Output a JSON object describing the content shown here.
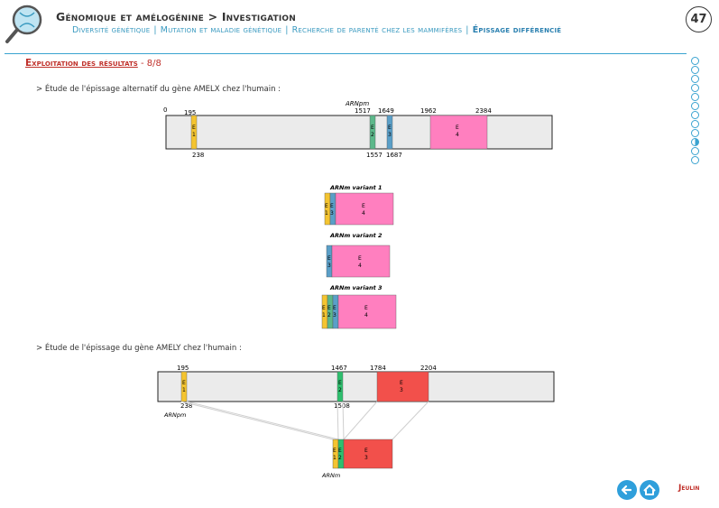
{
  "header": {
    "title_main": "Génomique et amélogénine",
    "title_sep": " > ",
    "title_sub": "Investigation",
    "subnav": [
      {
        "label": "Diversité génétique",
        "active": false
      },
      {
        "label": "Mutation et maladie génétique",
        "active": false
      },
      {
        "label": "Recherche de parenté chez les mammifères",
        "active": false
      },
      {
        "label": "Épissage différencié",
        "active": true
      }
    ],
    "page_number": "47"
  },
  "section": {
    "heading": "Exploitation des résultats",
    "counter": " - 8/8"
  },
  "progress": {
    "total": 12,
    "current": 10
  },
  "amelx": {
    "intro": "> Étude de l'épissage alternatif du gène AMELX chez l'humain :",
    "premrna_label": "ARNpm",
    "coords": {
      "start": "0",
      "e1_start": "195",
      "e1_end": "238",
      "e2_start": "1517",
      "e2_end": "1557",
      "e3_start": "1649",
      "e3_end": "1687",
      "e4_start": "1962",
      "e4_end": "2384"
    },
    "exon_labels": {
      "e1": "E\n1",
      "e2": "E\n2",
      "e3": "E\n3",
      "e4": "E\n4"
    },
    "variants": [
      {
        "label": "ARNm variant 1"
      },
      {
        "label": "ARNm variant 2"
      },
      {
        "label": "ARNm variant 3"
      }
    ]
  },
  "amely": {
    "intro": "> Étude de l'épissage du gène AMELY chez l'humain :",
    "premrna_label": "ARNpm",
    "mrna_label": "ARNm",
    "coords": {
      "e1_start": "195",
      "e1_end": "238",
      "e2_start": "1467",
      "e2_end": "1508",
      "e3_start": "1784",
      "e3_end": "2204"
    }
  },
  "colors": {
    "exon1": "#f4c430",
    "exon2": "#2ebf6e",
    "exon2_x": "#5cb88a",
    "exon3_x": "#5a9fc8",
    "exon4": "#ff7fbf",
    "exon3_y": "#f2504b",
    "gene_bg": "#ebebeb",
    "accent": "#3aa3d0",
    "brand_red": "#c0302a"
  },
  "footer": {
    "back_icon": "arrow-left-icon",
    "home_icon": "home-icon",
    "brand": "Jeulin"
  }
}
